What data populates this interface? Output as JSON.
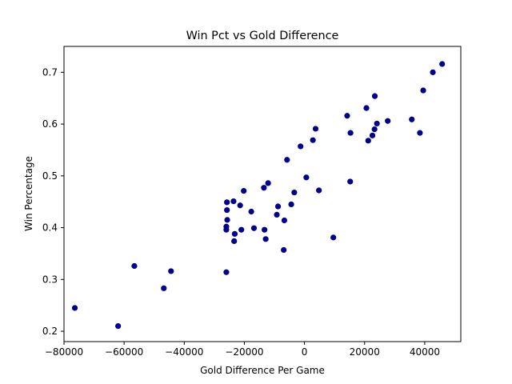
{
  "chart_data": {
    "type": "scatter",
    "title": "Win Pct vs Gold Difference",
    "xlabel": "Gold Difference Per Game",
    "ylabel": "Win Percentage",
    "xlim": [
      -80000,
      52000
    ],
    "ylim": [
      0.18,
      0.75
    ],
    "xticks": [
      -80000,
      -60000,
      -40000,
      -20000,
      0,
      20000,
      40000
    ],
    "xtick_labels": [
      "−80000",
      "−60000",
      "−40000",
      "−20000",
      "0",
      "20000",
      "40000"
    ],
    "yticks": [
      0.2,
      0.3,
      0.4,
      0.5,
      0.6,
      0.7
    ],
    "ytick_labels": [
      "0.2",
      "0.3",
      "0.4",
      "0.5",
      "0.6",
      "0.7"
    ],
    "grid": false,
    "marker_color": "#00008b",
    "points": [
      {
        "x": -76400,
        "y": 0.245
      },
      {
        "x": -62000,
        "y": 0.21
      },
      {
        "x": -56600,
        "y": 0.326
      },
      {
        "x": -46800,
        "y": 0.283
      },
      {
        "x": -44400,
        "y": 0.316
      },
      {
        "x": -26000,
        "y": 0.314
      },
      {
        "x": -26000,
        "y": 0.396
      },
      {
        "x": -26000,
        "y": 0.402
      },
      {
        "x": -25700,
        "y": 0.415
      },
      {
        "x": -25800,
        "y": 0.434
      },
      {
        "x": -25800,
        "y": 0.449
      },
      {
        "x": -23600,
        "y": 0.451
      },
      {
        "x": -23400,
        "y": 0.374
      },
      {
        "x": -23200,
        "y": 0.388
      },
      {
        "x": -21400,
        "y": 0.443
      },
      {
        "x": -21000,
        "y": 0.396
      },
      {
        "x": -20200,
        "y": 0.471
      },
      {
        "x": -17700,
        "y": 0.431
      },
      {
        "x": -16800,
        "y": 0.399
      },
      {
        "x": -13500,
        "y": 0.477
      },
      {
        "x": -13300,
        "y": 0.396
      },
      {
        "x": -12900,
        "y": 0.378
      },
      {
        "x": -12100,
        "y": 0.486
      },
      {
        "x": -9200,
        "y": 0.425
      },
      {
        "x": -8800,
        "y": 0.441
      },
      {
        "x": -6900,
        "y": 0.357
      },
      {
        "x": -6700,
        "y": 0.414
      },
      {
        "x": -5800,
        "y": 0.531
      },
      {
        "x": -4400,
        "y": 0.445
      },
      {
        "x": -3400,
        "y": 0.468
      },
      {
        "x": -1300,
        "y": 0.557
      },
      {
        "x": 600,
        "y": 0.497
      },
      {
        "x": 2800,
        "y": 0.569
      },
      {
        "x": 3700,
        "y": 0.591
      },
      {
        "x": 4800,
        "y": 0.472
      },
      {
        "x": 9600,
        "y": 0.381
      },
      {
        "x": 14200,
        "y": 0.616
      },
      {
        "x": 15200,
        "y": 0.489
      },
      {
        "x": 15300,
        "y": 0.583
      },
      {
        "x": 20600,
        "y": 0.631
      },
      {
        "x": 21200,
        "y": 0.568
      },
      {
        "x": 22600,
        "y": 0.578
      },
      {
        "x": 23300,
        "y": 0.59
      },
      {
        "x": 23400,
        "y": 0.654
      },
      {
        "x": 24100,
        "y": 0.601
      },
      {
        "x": 27700,
        "y": 0.606
      },
      {
        "x": 35700,
        "y": 0.609
      },
      {
        "x": 38400,
        "y": 0.583
      },
      {
        "x": 39500,
        "y": 0.665
      },
      {
        "x": 42700,
        "y": 0.7
      },
      {
        "x": 45800,
        "y": 0.716
      }
    ]
  }
}
